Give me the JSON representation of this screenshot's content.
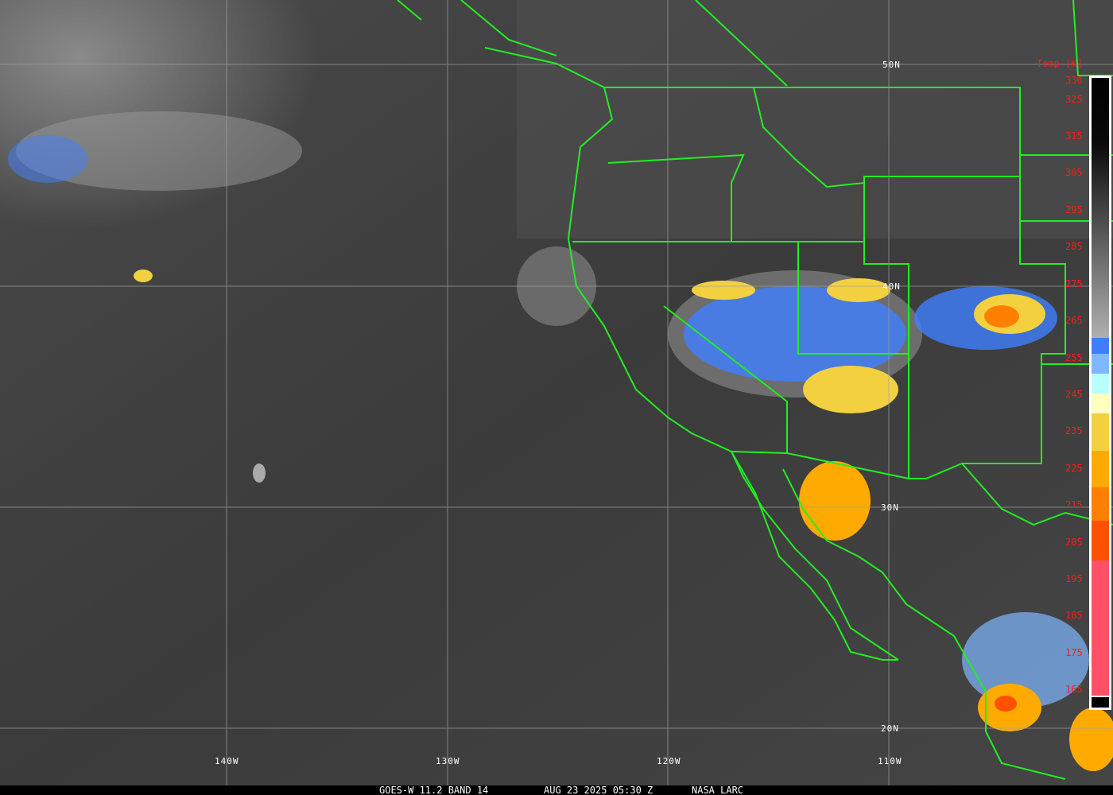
{
  "caption": {
    "product": "GOES-W 11.2 BAND 14",
    "datetime": "AUG 23 2025 05:30 Z",
    "source": "NASA LARC"
  },
  "grid": {
    "latitudes": [
      "50N",
      "40N",
      "30N",
      "20N"
    ],
    "longitudes": [
      "140W",
      "130W",
      "120W",
      "110W"
    ]
  },
  "colorbar": {
    "title": "Temp [K]",
    "ticks": [
      "330",
      "325",
      "315",
      "305",
      "295",
      "285",
      "275",
      "265",
      "255",
      "245",
      "235",
      "225",
      "215",
      "205",
      "195",
      "185",
      "175",
      "165"
    ],
    "colors": {
      "warm": "#000000",
      "mid": "#a8a8a8",
      "blue": "#3f7fff",
      "light_blue": "#7fb8ff",
      "cyan": "#b8ffff",
      "cream": "#ffffc0",
      "yellow": "#f2d040",
      "orange": "#ffaa00",
      "dark_orange": "#ff8000",
      "red_orange": "#ff5000",
      "pink": "#ff5068",
      "cold": "#000000"
    }
  },
  "overlay_color": "#22ee22"
}
